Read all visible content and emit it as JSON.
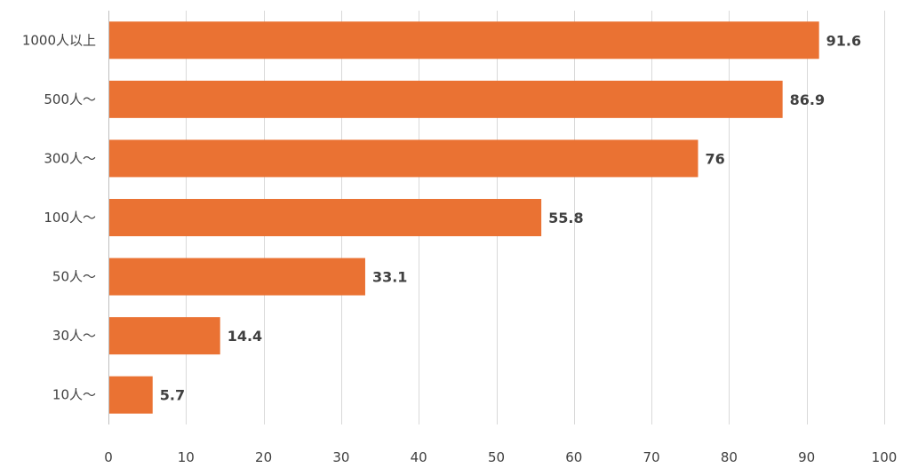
{
  "chart_data": {
    "type": "bar",
    "orientation": "horizontal",
    "title": "",
    "xlabel": "",
    "ylabel": "",
    "categories": [
      "1000人以上",
      "500人～",
      "300人～",
      "100人～",
      "50人～",
      "30人～",
      "10人～"
    ],
    "values": [
      91.6,
      86.9,
      76,
      55.8,
      33.1,
      14.4,
      5.7
    ],
    "data_labels": [
      "91.6",
      "86.9",
      "76",
      "55.8",
      "33.1",
      "14.4",
      "5.7"
    ],
    "xlim": [
      0,
      100
    ],
    "x_ticks": [
      0,
      10,
      20,
      30,
      40,
      50,
      60,
      70,
      80,
      90,
      100
    ],
    "grid": "vertical",
    "legend": "none",
    "bar_color": "#ea7233"
  }
}
